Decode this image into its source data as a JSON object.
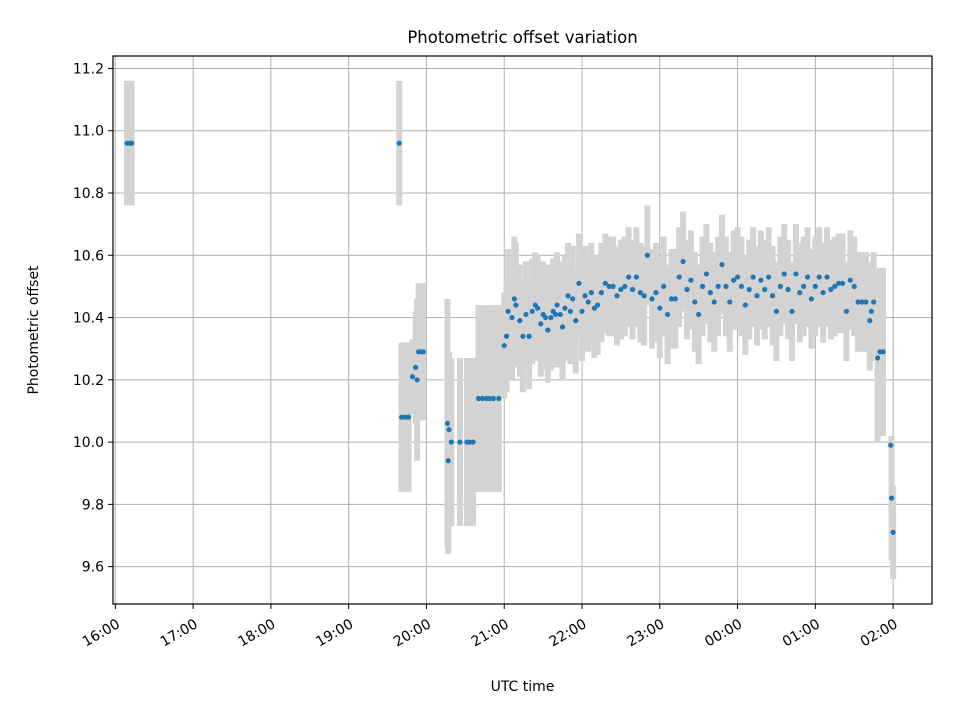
{
  "chart_data": {
    "type": "scatter",
    "title": "Photometric offset variation",
    "xlabel": "UTC time",
    "ylabel": "Photometric offset",
    "x_unit": "hours UTC (values >24 are after midnight)",
    "xlim": [
      15.97,
      26.5
    ],
    "ylim": [
      9.48,
      11.24
    ],
    "x_ticks": [
      16,
      17,
      18,
      19,
      20,
      21,
      22,
      23,
      24,
      25,
      26
    ],
    "x_tick_labels": [
      "16:00",
      "17:00",
      "18:00",
      "19:00",
      "20:00",
      "21:00",
      "22:00",
      "23:00",
      "00:00",
      "01:00",
      "02:00"
    ],
    "y_ticks": [
      9.6,
      9.8,
      10.0,
      10.2,
      10.4,
      10.6,
      10.8,
      11.0,
      11.2
    ],
    "y_tick_labels": [
      "9.6",
      "9.8",
      "10.0",
      "10.2",
      "10.4",
      "10.6",
      "10.8",
      "11.0",
      "11.2"
    ],
    "grid": true,
    "colors": {
      "points": "#1f77b4",
      "errorbars": "#d3d3d3",
      "grid": "#b0b0b0"
    },
    "series": [
      {
        "points": [
          {
            "x": 16.15,
            "y": 10.96,
            "err": 0.2
          },
          {
            "x": 16.18,
            "y": 10.96,
            "err": 0.2
          },
          {
            "x": 16.21,
            "y": 10.96,
            "err": 0.2
          },
          {
            "x": 19.65,
            "y": 10.96,
            "err": 0.2
          },
          {
            "x": 19.68,
            "y": 10.08,
            "err": 0.24
          },
          {
            "x": 19.73,
            "y": 10.08,
            "err": 0.24
          },
          {
            "x": 19.77,
            "y": 10.08,
            "err": 0.24
          },
          {
            "x": 19.82,
            "y": 10.21,
            "err": 0.12
          },
          {
            "x": 19.86,
            "y": 10.24,
            "err": 0.18
          },
          {
            "x": 19.88,
            "y": 10.2,
            "err": 0.26
          },
          {
            "x": 19.9,
            "y": 10.29,
            "err": 0.22
          },
          {
            "x": 19.93,
            "y": 10.29,
            "err": 0.22
          },
          {
            "x": 19.96,
            "y": 10.29,
            "err": 0.22
          },
          {
            "x": 20.27,
            "y": 10.06,
            "err": 0.4
          },
          {
            "x": 20.28,
            "y": 9.94,
            "err": 0.3
          },
          {
            "x": 20.29,
            "y": 10.04,
            "err": 0.25
          },
          {
            "x": 20.32,
            "y": 10.0,
            "err": 0.27
          },
          {
            "x": 20.43,
            "y": 10.0,
            "err": 0.27
          },
          {
            "x": 20.52,
            "y": 10.0,
            "err": 0.27
          },
          {
            "x": 20.56,
            "y": 10.0,
            "err": 0.27
          },
          {
            "x": 20.6,
            "y": 10.0,
            "err": 0.27
          },
          {
            "x": 20.67,
            "y": 10.14,
            "err": 0.3
          },
          {
            "x": 20.72,
            "y": 10.14,
            "err": 0.3
          },
          {
            "x": 20.77,
            "y": 10.14,
            "err": 0.3
          },
          {
            "x": 20.81,
            "y": 10.14,
            "err": 0.3
          },
          {
            "x": 20.86,
            "y": 10.14,
            "err": 0.3
          },
          {
            "x": 20.93,
            "y": 10.14,
            "err": 0.3
          },
          {
            "x": 21.0,
            "y": 10.31,
            "err": 0.17
          },
          {
            "x": 21.03,
            "y": 10.34,
            "err": 0.18
          },
          {
            "x": 21.05,
            "y": 10.42,
            "err": 0.2
          },
          {
            "x": 21.1,
            "y": 10.4,
            "err": 0.2
          },
          {
            "x": 21.13,
            "y": 10.46,
            "err": 0.2
          },
          {
            "x": 21.15,
            "y": 10.44,
            "err": 0.2
          },
          {
            "x": 21.2,
            "y": 10.39,
            "err": 0.18
          },
          {
            "x": 21.24,
            "y": 10.34,
            "err": 0.18
          },
          {
            "x": 21.28,
            "y": 10.41,
            "err": 0.17
          },
          {
            "x": 21.32,
            "y": 10.34,
            "err": 0.17
          },
          {
            "x": 21.36,
            "y": 10.42,
            "err": 0.17
          },
          {
            "x": 21.4,
            "y": 10.44,
            "err": 0.17
          },
          {
            "x": 21.43,
            "y": 10.43,
            "err": 0.17
          },
          {
            "x": 21.47,
            "y": 10.38,
            "err": 0.17
          },
          {
            "x": 21.5,
            "y": 10.41,
            "err": 0.17
          },
          {
            "x": 21.53,
            "y": 10.4,
            "err": 0.17
          },
          {
            "x": 21.56,
            "y": 10.36,
            "err": 0.17
          },
          {
            "x": 21.6,
            "y": 10.4,
            "err": 0.17
          },
          {
            "x": 21.63,
            "y": 10.42,
            "err": 0.17
          },
          {
            "x": 21.66,
            "y": 10.41,
            "err": 0.17
          },
          {
            "x": 21.68,
            "y": 10.44,
            "err": 0.17
          },
          {
            "x": 21.72,
            "y": 10.41,
            "err": 0.17
          },
          {
            "x": 21.75,
            "y": 10.37,
            "err": 0.17
          },
          {
            "x": 21.78,
            "y": 10.43,
            "err": 0.17
          },
          {
            "x": 21.82,
            "y": 10.47,
            "err": 0.17
          },
          {
            "x": 21.85,
            "y": 10.42,
            "err": 0.17
          },
          {
            "x": 21.88,
            "y": 10.46,
            "err": 0.17
          },
          {
            "x": 21.92,
            "y": 10.39,
            "err": 0.17
          },
          {
            "x": 21.96,
            "y": 10.51,
            "err": 0.16
          },
          {
            "x": 22.0,
            "y": 10.42,
            "err": 0.16
          },
          {
            "x": 22.04,
            "y": 10.47,
            "err": 0.16
          },
          {
            "x": 22.08,
            "y": 10.45,
            "err": 0.16
          },
          {
            "x": 22.12,
            "y": 10.48,
            "err": 0.16
          },
          {
            "x": 22.16,
            "y": 10.43,
            "err": 0.16
          },
          {
            "x": 22.2,
            "y": 10.44,
            "err": 0.16
          },
          {
            "x": 22.25,
            "y": 10.48,
            "err": 0.16
          },
          {
            "x": 22.3,
            "y": 10.51,
            "err": 0.16
          },
          {
            "x": 22.35,
            "y": 10.5,
            "err": 0.16
          },
          {
            "x": 22.4,
            "y": 10.5,
            "err": 0.16
          },
          {
            "x": 22.45,
            "y": 10.47,
            "err": 0.16
          },
          {
            "x": 22.5,
            "y": 10.49,
            "err": 0.16
          },
          {
            "x": 22.55,
            "y": 10.5,
            "err": 0.16
          },
          {
            "x": 22.6,
            "y": 10.53,
            "err": 0.16
          },
          {
            "x": 22.65,
            "y": 10.49,
            "err": 0.16
          },
          {
            "x": 22.7,
            "y": 10.53,
            "err": 0.16
          },
          {
            "x": 22.75,
            "y": 10.48,
            "err": 0.16
          },
          {
            "x": 22.8,
            "y": 10.47,
            "err": 0.16
          },
          {
            "x": 22.84,
            "y": 10.6,
            "err": 0.16
          },
          {
            "x": 22.9,
            "y": 10.46,
            "err": 0.16
          },
          {
            "x": 22.95,
            "y": 10.48,
            "err": 0.16
          },
          {
            "x": 23.0,
            "y": 10.43,
            "err": 0.16
          },
          {
            "x": 23.05,
            "y": 10.5,
            "err": 0.16
          },
          {
            "x": 23.1,
            "y": 10.41,
            "err": 0.16
          },
          {
            "x": 23.15,
            "y": 10.46,
            "err": 0.16
          },
          {
            "x": 23.2,
            "y": 10.46,
            "err": 0.16
          },
          {
            "x": 23.25,
            "y": 10.53,
            "err": 0.16
          },
          {
            "x": 23.3,
            "y": 10.58,
            "err": 0.16
          },
          {
            "x": 23.35,
            "y": 10.49,
            "err": 0.16
          },
          {
            "x": 23.4,
            "y": 10.52,
            "err": 0.16
          },
          {
            "x": 23.45,
            "y": 10.45,
            "err": 0.16
          },
          {
            "x": 23.5,
            "y": 10.41,
            "err": 0.16
          },
          {
            "x": 23.55,
            "y": 10.5,
            "err": 0.16
          },
          {
            "x": 23.6,
            "y": 10.54,
            "err": 0.16
          },
          {
            "x": 23.65,
            "y": 10.48,
            "err": 0.16
          },
          {
            "x": 23.7,
            "y": 10.45,
            "err": 0.16
          },
          {
            "x": 23.75,
            "y": 10.5,
            "err": 0.16
          },
          {
            "x": 23.8,
            "y": 10.57,
            "err": 0.16
          },
          {
            "x": 23.85,
            "y": 10.5,
            "err": 0.16
          },
          {
            "x": 23.9,
            "y": 10.45,
            "err": 0.16
          },
          {
            "x": 23.95,
            "y": 10.52,
            "err": 0.16
          },
          {
            "x": 24.0,
            "y": 10.53,
            "err": 0.16
          },
          {
            "x": 24.05,
            "y": 10.5,
            "err": 0.16
          },
          {
            "x": 24.1,
            "y": 10.44,
            "err": 0.16
          },
          {
            "x": 24.15,
            "y": 10.49,
            "err": 0.16
          },
          {
            "x": 24.2,
            "y": 10.53,
            "err": 0.16
          },
          {
            "x": 24.25,
            "y": 10.47,
            "err": 0.16
          },
          {
            "x": 24.3,
            "y": 10.52,
            "err": 0.16
          },
          {
            "x": 24.35,
            "y": 10.49,
            "err": 0.16
          },
          {
            "x": 24.4,
            "y": 10.53,
            "err": 0.16
          },
          {
            "x": 24.45,
            "y": 10.47,
            "err": 0.16
          },
          {
            "x": 24.5,
            "y": 10.42,
            "err": 0.16
          },
          {
            "x": 24.55,
            "y": 10.5,
            "err": 0.16
          },
          {
            "x": 24.6,
            "y": 10.54,
            "err": 0.16
          },
          {
            "x": 24.65,
            "y": 10.49,
            "err": 0.16
          },
          {
            "x": 24.7,
            "y": 10.42,
            "err": 0.16
          },
          {
            "x": 24.75,
            "y": 10.54,
            "err": 0.16
          },
          {
            "x": 24.8,
            "y": 10.48,
            "err": 0.16
          },
          {
            "x": 24.85,
            "y": 10.5,
            "err": 0.16
          },
          {
            "x": 24.9,
            "y": 10.53,
            "err": 0.16
          },
          {
            "x": 24.95,
            "y": 10.46,
            "err": 0.16
          },
          {
            "x": 25.0,
            "y": 10.5,
            "err": 0.16
          },
          {
            "x": 25.05,
            "y": 10.53,
            "err": 0.16
          },
          {
            "x": 25.1,
            "y": 10.48,
            "err": 0.16
          },
          {
            "x": 25.15,
            "y": 10.53,
            "err": 0.16
          },
          {
            "x": 25.2,
            "y": 10.49,
            "err": 0.16
          },
          {
            "x": 25.25,
            "y": 10.5,
            "err": 0.16
          },
          {
            "x": 25.3,
            "y": 10.51,
            "err": 0.16
          },
          {
            "x": 25.35,
            "y": 10.51,
            "err": 0.16
          },
          {
            "x": 25.4,
            "y": 10.42,
            "err": 0.16
          },
          {
            "x": 25.45,
            "y": 10.52,
            "err": 0.16
          },
          {
            "x": 25.5,
            "y": 10.5,
            "err": 0.16
          },
          {
            "x": 25.55,
            "y": 10.45,
            "err": 0.16
          },
          {
            "x": 25.6,
            "y": 10.45,
            "err": 0.16
          },
          {
            "x": 25.65,
            "y": 10.45,
            "err": 0.16
          },
          {
            "x": 25.7,
            "y": 10.39,
            "err": 0.16
          },
          {
            "x": 25.72,
            "y": 10.42,
            "err": 0.16
          },
          {
            "x": 25.75,
            "y": 10.45,
            "err": 0.16
          },
          {
            "x": 25.8,
            "y": 10.27,
            "err": 0.27
          },
          {
            "x": 25.83,
            "y": 10.29,
            "err": 0.27
          },
          {
            "x": 25.87,
            "y": 10.29,
            "err": 0.27
          },
          {
            "x": 25.97,
            "y": 9.99,
            "err": 0.01
          },
          {
            "x": 25.98,
            "y": 9.82,
            "err": 0.2
          },
          {
            "x": 26.0,
            "y": 9.71,
            "err": 0.15
          }
        ]
      }
    ]
  }
}
